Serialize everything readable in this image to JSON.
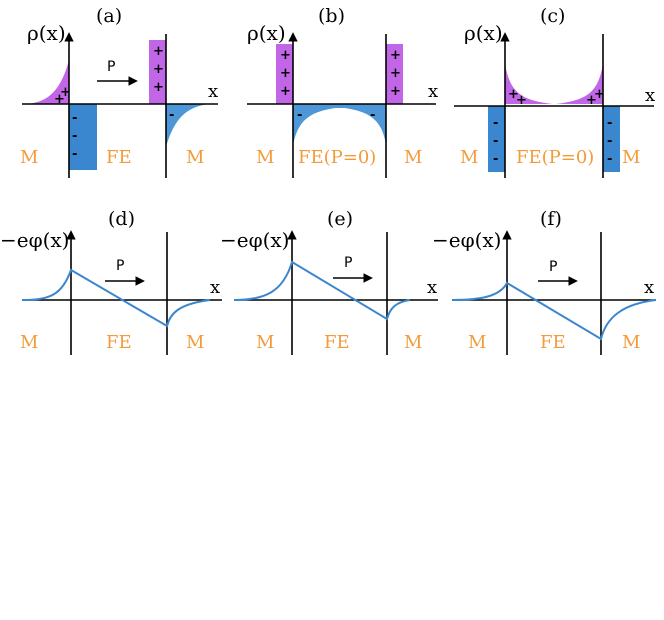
{
  "colors": {
    "positive_charge": "#c266e8",
    "negative_charge": "#3a86cf",
    "region_label": "#f39b3b",
    "axis": "#000000"
  },
  "panels_top": [
    {
      "id": "a",
      "label": "(a)",
      "y_axis": "ρ(x)",
      "x_axis": "x",
      "left": "M",
      "middle": "FE",
      "right": "M",
      "arrow": "P"
    },
    {
      "id": "b",
      "label": "(b)",
      "y_axis": "ρ(x)",
      "x_axis": "x",
      "left": "M",
      "middle": "FE(P=0)",
      "right": "M"
    },
    {
      "id": "c",
      "label": "(c)",
      "y_axis": "ρ(x)",
      "x_axis": "x",
      "left": "M",
      "middle": "FE(P=0)",
      "right": "M"
    }
  ],
  "panels_bottom": [
    {
      "id": "d",
      "label": "(d)",
      "y_axis": "−eφ(x)",
      "x_axis": "x",
      "left": "M",
      "middle": "FE",
      "right": "M",
      "arrow": "P"
    },
    {
      "id": "e",
      "label": "(e)",
      "y_axis": "−eφ(x)",
      "x_axis": "x",
      "left": "M",
      "middle": "FE",
      "right": "M",
      "arrow": "P"
    },
    {
      "id": "f",
      "label": "(f)",
      "y_axis": "−eφ(x)",
      "x_axis": "x",
      "left": "M",
      "middle": "FE",
      "right": "M",
      "arrow": "P"
    }
  ],
  "signs": {
    "plus": "+",
    "minus": "-"
  }
}
